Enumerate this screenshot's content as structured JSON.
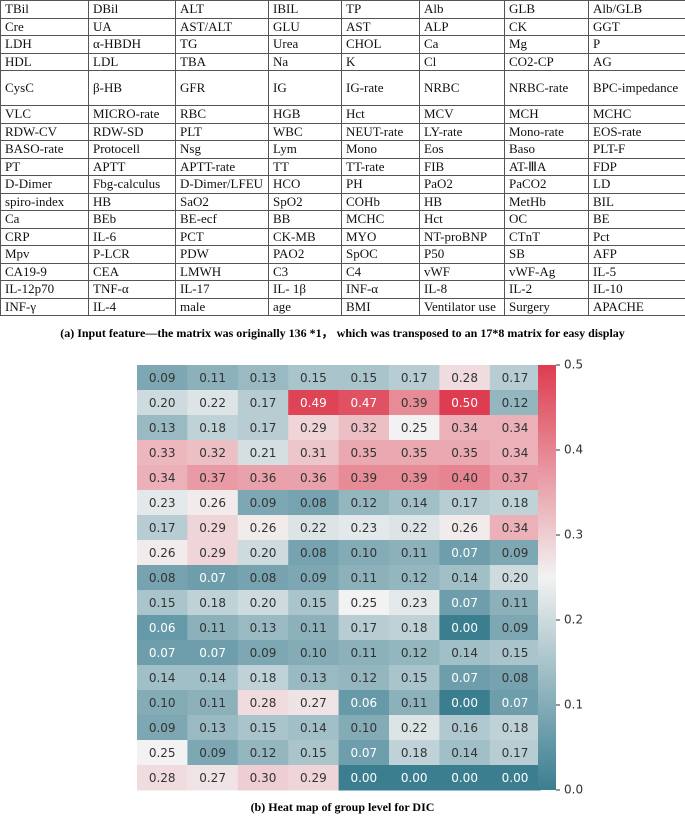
{
  "table": {
    "rows": [
      [
        "TBil",
        "DBil",
        "ALT",
        "IBIL",
        "TP",
        "Alb",
        "GLB",
        "Alb/GLB"
      ],
      [
        "Cre",
        "UA",
        "AST/ALT",
        "GLU",
        "AST",
        "ALP",
        "CK",
        "GGT"
      ],
      [
        "LDH",
        "α-HBDH",
        "TG",
        "Urea",
        "CHOL",
        "Ca",
        "Mg",
        "P"
      ],
      [
        "HDL",
        "LDL",
        "TBA",
        "Na",
        "K",
        "Cl",
        "CO2-CP",
        "AG"
      ],
      [
        "CysC",
        "β-HB",
        "GFR",
        "IG",
        "IG-rate",
        "NRBC",
        "NRBC-rate",
        "BPC-impedance"
      ],
      [
        "VLC",
        "MICRO-rate",
        "RBC",
        "HGB",
        "Hct",
        "MCV",
        "MCH",
        "MCHC"
      ],
      [
        "RDW-CV",
        "RDW-SD",
        "PLT",
        "WBC",
        "NEUT-rate",
        "LY-rate",
        "Mono-rate",
        "EOS-rate"
      ],
      [
        "BASO-rate",
        "Protocell",
        "Nsg",
        "Lym",
        "Mono",
        "Eos",
        "Baso",
        "PLT-F"
      ],
      [
        "PT",
        "APTT",
        "APTT-rate",
        "TT",
        "TT-rate",
        "FIB",
        "AT-ⅢA",
        "FDP"
      ],
      [
        "D-Dimer",
        "Fbg-calculus",
        "D-Dimer/LFEU",
        "HCO",
        "PH",
        "PaO2",
        "PaCO2",
        "LD"
      ],
      [
        "spiro-index",
        "HB",
        "SaO2",
        "SpO2",
        "COHb",
        "HB",
        "MetHb",
        "BIL"
      ],
      [
        "Ca",
        "BEb",
        "BE-ecf",
        "BB",
        "MCHC",
        "Hct",
        "OC",
        "BE"
      ],
      [
        "CRP",
        "IL-6",
        "PCT",
        "CK-MB",
        "MYO",
        "NT-proBNP",
        "CTnT",
        "Pct"
      ],
      [
        "Mpv",
        "P-LCR",
        "PDW",
        "PAO2",
        "SpOC",
        "P50",
        "SB",
        "AFP"
      ],
      [
        "CA19-9",
        "CEA",
        "LMWH",
        "C3",
        "C4",
        "vWF",
        "vWF-Ag",
        "IL-5"
      ],
      [
        "IL-12p70",
        "TNF-α",
        "IL-17",
        "IL- 1β",
        "INF-α",
        "IL-8",
        "IL-2",
        "IL-10"
      ],
      [
        "INF-γ",
        "IL-4",
        "male",
        "age",
        "BMI",
        "Ventilator use",
        "Surgery",
        "APACHE"
      ]
    ],
    "caption": "(a) Input feature—the matrix was originally 136 *1， which was transposed to an 17*8 matrix for easy display"
  },
  "chart_data": {
    "type": "heatmap",
    "caption": "(b) Heat map of group level for DIC",
    "values": [
      [
        0.09,
        0.11,
        0.13,
        0.15,
        0.15,
        0.17,
        0.28,
        0.17
      ],
      [
        0.2,
        0.22,
        0.17,
        0.49,
        0.47,
        0.39,
        0.5,
        0.12
      ],
      [
        0.13,
        0.18,
        0.17,
        0.29,
        0.32,
        0.25,
        0.34,
        0.34
      ],
      [
        0.33,
        0.32,
        0.21,
        0.31,
        0.35,
        0.35,
        0.35,
        0.34
      ],
      [
        0.34,
        0.37,
        0.36,
        0.36,
        0.39,
        0.39,
        0.4,
        0.37
      ],
      [
        0.23,
        0.26,
        0.09,
        0.08,
        0.12,
        0.14,
        0.17,
        0.18
      ],
      [
        0.17,
        0.29,
        0.26,
        0.22,
        0.23,
        0.22,
        0.26,
        0.34
      ],
      [
        0.26,
        0.29,
        0.2,
        0.08,
        0.1,
        0.11,
        0.07,
        0.09
      ],
      [
        0.08,
        0.07,
        0.08,
        0.09,
        0.11,
        0.12,
        0.14,
        0.2
      ],
      [
        0.15,
        0.18,
        0.2,
        0.15,
        0.25,
        0.23,
        0.07,
        0.11
      ],
      [
        0.06,
        0.11,
        0.13,
        0.11,
        0.17,
        0.18,
        0,
        0.09
      ],
      [
        0.07,
        0.07,
        0.09,
        0.1,
        0.11,
        0.12,
        0.14,
        0.15
      ],
      [
        0.14,
        0.14,
        0.18,
        0.13,
        0.12,
        0.15,
        0.07,
        0.08
      ],
      [
        0.1,
        0.11,
        0.28,
        0.27,
        0.06,
        0.11,
        0,
        0.07
      ],
      [
        0.09,
        0.13,
        0.15,
        0.14,
        0.1,
        0.22,
        0.16,
        0.18
      ],
      [
        0.25,
        0.09,
        0.12,
        0.15,
        0.07,
        0.18,
        0.14,
        0.17
      ],
      [
        0.28,
        0.27,
        0.3,
        0.29,
        0,
        0,
        0,
        0
      ]
    ],
    "value_labels": [
      [
        "0.09",
        "0.11",
        "0.13",
        "0.15",
        "0.15",
        "0.17",
        "0.28",
        "0.17"
      ],
      [
        "0.20",
        "0.22",
        "0.17",
        "0.49",
        "0.47",
        "0.39",
        "0.50",
        "0.12"
      ],
      [
        "0.13",
        "0.18",
        "0.17",
        "0.29",
        "0.32",
        "0.25",
        "0.34",
        "0.34"
      ],
      [
        "0.33",
        "0.32",
        "0.21",
        "0.31",
        "0.35",
        "0.35",
        "0.35",
        "0.34"
      ],
      [
        "0.34",
        "0.37",
        "0.36",
        "0.36",
        "0.39",
        "0.39",
        "0.40",
        "0.37"
      ],
      [
        "0.23",
        "0.26",
        "0.09",
        "0.08",
        "0.12",
        "0.14",
        "0.17",
        "0.18"
      ],
      [
        "0.17",
        "0.29",
        "0.26",
        "0.22",
        "0.23",
        "0.22",
        "0.26",
        "0.34"
      ],
      [
        "0.26",
        "0.29",
        "0.20",
        "0.08",
        "0.10",
        "0.11",
        "0.07",
        "0.09"
      ],
      [
        "0.08",
        "0.07",
        "0.08",
        "0.09",
        "0.11",
        "0.12",
        "0.14",
        "0.20"
      ],
      [
        "0.15",
        "0.18",
        "0.20",
        "0.15",
        "0.25",
        "0.23",
        "0.07",
        "0.11"
      ],
      [
        "0.06",
        "0.11",
        "0.13",
        "0.11",
        "0.17",
        "0.18",
        "0.00",
        "0.09"
      ],
      [
        "0.07",
        "0.07",
        "0.09",
        "0.10",
        "0.11",
        "0.12",
        "0.14",
        "0.15"
      ],
      [
        "0.14",
        "0.14",
        "0.18",
        "0.13",
        "0.12",
        "0.15",
        "0.07",
        "0.08"
      ],
      [
        "0.10",
        "0.11",
        "0.28",
        "0.27",
        "0.06",
        "0.11",
        "0.00",
        "0.07"
      ],
      [
        "0.09",
        "0.13",
        "0.15",
        "0.14",
        "0.10",
        "0.22",
        "0.16",
        "0.18"
      ],
      [
        "0.25",
        "0.09",
        "0.12",
        "0.15",
        "0.07",
        "0.18",
        "0.14",
        "0.17"
      ],
      [
        "0.28",
        "0.27",
        "0.30",
        "0.29",
        "0.00",
        "0.00",
        "0.00",
        "0.00"
      ]
    ],
    "colors": [
      "#3b7e90",
      "#f2f2f2",
      "#de3c50"
    ],
    "clim": [
      0,
      0.5
    ],
    "cticks": [
      {
        "value": 0,
        "label": "0.0"
      },
      0.1,
      0.2,
      0.3,
      0.4,
      0.5
    ]
  }
}
